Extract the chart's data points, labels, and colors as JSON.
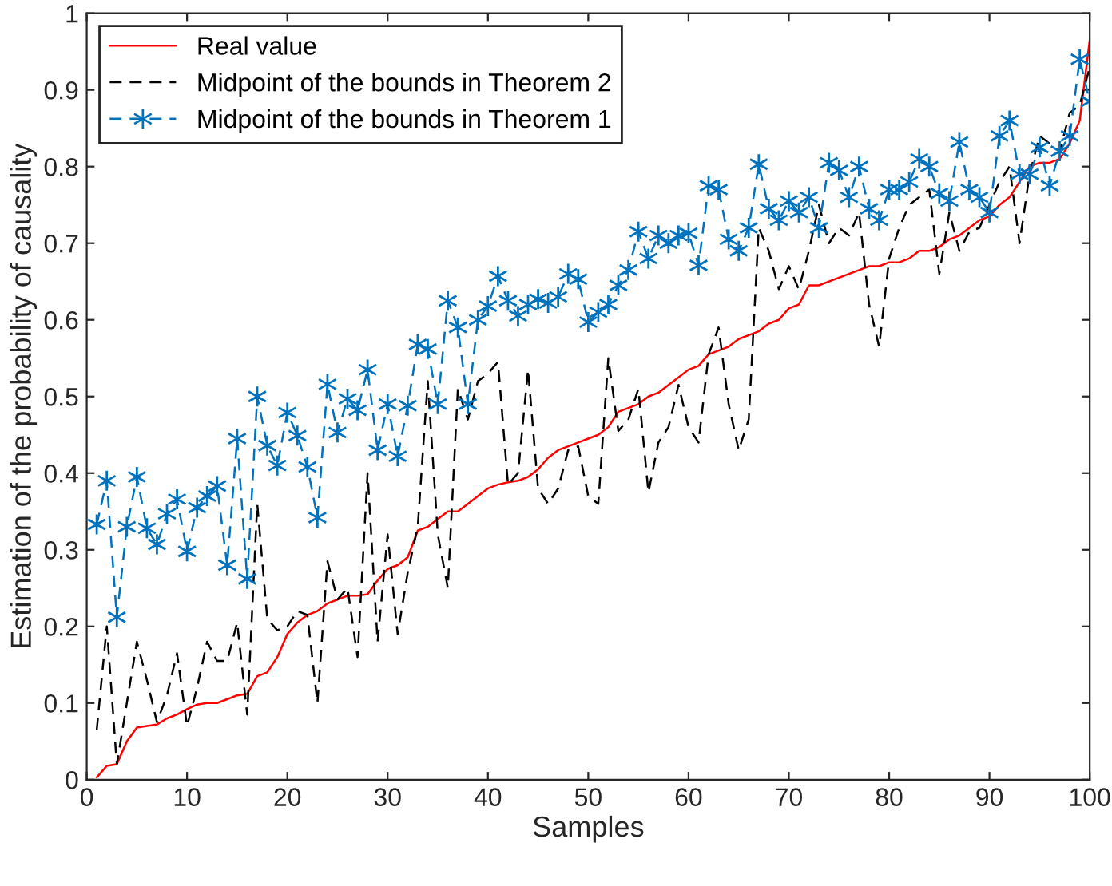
{
  "chart_data": {
    "type": "line",
    "xlabel": "Samples",
    "ylabel": "Estimation of the probability of causality",
    "x": [
      1,
      2,
      3,
      4,
      5,
      6,
      7,
      8,
      9,
      10,
      11,
      12,
      13,
      14,
      15,
      16,
      17,
      18,
      19,
      20,
      21,
      22,
      23,
      24,
      25,
      26,
      27,
      28,
      29,
      30,
      31,
      32,
      33,
      34,
      35,
      36,
      37,
      38,
      39,
      40,
      41,
      42,
      43,
      44,
      45,
      46,
      47,
      48,
      49,
      50,
      51,
      52,
      53,
      54,
      55,
      56,
      57,
      58,
      59,
      60,
      61,
      62,
      63,
      64,
      65,
      66,
      67,
      68,
      69,
      70,
      71,
      72,
      73,
      74,
      75,
      76,
      77,
      78,
      79,
      80,
      81,
      82,
      83,
      84,
      85,
      86,
      87,
      88,
      89,
      90,
      91,
      92,
      93,
      94,
      95,
      96,
      97,
      98,
      99,
      100
    ],
    "xlim": [
      0,
      100
    ],
    "xticks": [
      0,
      10,
      20,
      30,
      40,
      50,
      60,
      70,
      80,
      90,
      100
    ],
    "ylim": [
      0,
      1
    ],
    "yticks": [
      0,
      0.1,
      0.2,
      0.3,
      0.4,
      0.5,
      0.6,
      0.7,
      0.8,
      0.9,
      1
    ],
    "grid": false,
    "legend": "top left",
    "series": [
      {
        "name": "Real value",
        "color": "#ff0000",
        "line_style": "solid",
        "marker": "none",
        "values": [
          0.003,
          0.018,
          0.02,
          0.05,
          0.068,
          0.07,
          0.072,
          0.08,
          0.085,
          0.092,
          0.098,
          0.1,
          0.1,
          0.105,
          0.11,
          0.112,
          0.135,
          0.14,
          0.16,
          0.19,
          0.205,
          0.215,
          0.22,
          0.23,
          0.235,
          0.24,
          0.24,
          0.242,
          0.26,
          0.275,
          0.28,
          0.29,
          0.325,
          0.33,
          0.34,
          0.35,
          0.35,
          0.36,
          0.37,
          0.38,
          0.385,
          0.388,
          0.39,
          0.395,
          0.405,
          0.42,
          0.43,
          0.435,
          0.44,
          0.445,
          0.45,
          0.46,
          0.48,
          0.485,
          0.49,
          0.5,
          0.505,
          0.515,
          0.525,
          0.535,
          0.54,
          0.555,
          0.56,
          0.565,
          0.575,
          0.58,
          0.585,
          0.595,
          0.6,
          0.615,
          0.62,
          0.645,
          0.645,
          0.65,
          0.655,
          0.66,
          0.665,
          0.67,
          0.67,
          0.675,
          0.675,
          0.68,
          0.69,
          0.69,
          0.695,
          0.705,
          0.71,
          0.72,
          0.73,
          0.735,
          0.75,
          0.76,
          0.78,
          0.8,
          0.805,
          0.805,
          0.81,
          0.83,
          0.86,
          0.965
        ]
      },
      {
        "name": "Midpoint of the bounds in Theorem 2",
        "color": "#000000",
        "line_style": "dashed",
        "marker": "none",
        "values": [
          0.065,
          0.2,
          0.02,
          0.1,
          0.18,
          0.13,
          0.075,
          0.11,
          0.165,
          0.07,
          0.12,
          0.18,
          0.155,
          0.155,
          0.205,
          0.085,
          0.36,
          0.21,
          0.195,
          0.2,
          0.22,
          0.215,
          0.1,
          0.285,
          0.235,
          0.25,
          0.16,
          0.4,
          0.18,
          0.32,
          0.19,
          0.27,
          0.33,
          0.52,
          0.32,
          0.25,
          0.51,
          0.47,
          0.52,
          0.53,
          0.545,
          0.385,
          0.4,
          0.535,
          0.38,
          0.36,
          0.38,
          0.43,
          0.435,
          0.37,
          0.36,
          0.55,
          0.455,
          0.47,
          0.51,
          0.375,
          0.44,
          0.46,
          0.515,
          0.46,
          0.44,
          0.555,
          0.59,
          0.49,
          0.43,
          0.47,
          0.72,
          0.69,
          0.64,
          0.67,
          0.64,
          0.69,
          0.75,
          0.7,
          0.72,
          0.71,
          0.74,
          0.62,
          0.565,
          0.68,
          0.72,
          0.75,
          0.76,
          0.77,
          0.66,
          0.74,
          0.69,
          0.715,
          0.72,
          0.75,
          0.78,
          0.8,
          0.7,
          0.79,
          0.84,
          0.83,
          0.82,
          0.87,
          0.88,
          0.93
        ]
      },
      {
        "name": "Midpoint of the bounds in Theorem 1",
        "color": "#0072bd",
        "line_style": "dashed",
        "marker": "cross",
        "values": [
          0.333,
          0.39,
          0.212,
          0.33,
          0.395,
          0.328,
          0.307,
          0.347,
          0.366,
          0.298,
          0.355,
          0.37,
          0.383,
          0.28,
          0.445,
          0.262,
          0.5,
          0.436,
          0.41,
          0.479,
          0.449,
          0.408,
          0.342,
          0.516,
          0.453,
          0.497,
          0.482,
          0.535,
          0.43,
          0.49,
          0.422,
          0.488,
          0.568,
          0.562,
          0.49,
          0.625,
          0.59,
          0.49,
          0.6,
          0.618,
          0.657,
          0.625,
          0.605,
          0.62,
          0.627,
          0.622,
          0.63,
          0.66,
          0.653,
          0.597,
          0.61,
          0.62,
          0.645,
          0.665,
          0.715,
          0.68,
          0.71,
          0.7,
          0.71,
          0.713,
          0.671,
          0.775,
          0.77,
          0.705,
          0.69,
          0.72,
          0.803,
          0.745,
          0.73,
          0.755,
          0.74,
          0.76,
          0.72,
          0.805,
          0.795,
          0.76,
          0.8,
          0.745,
          0.73,
          0.77,
          0.77,
          0.78,
          0.81,
          0.8,
          0.765,
          0.755,
          0.832,
          0.77,
          0.76,
          0.74,
          0.84,
          0.86,
          0.79,
          0.79,
          0.825,
          0.775,
          0.82,
          0.84,
          0.94,
          0.885
        ]
      }
    ]
  }
}
